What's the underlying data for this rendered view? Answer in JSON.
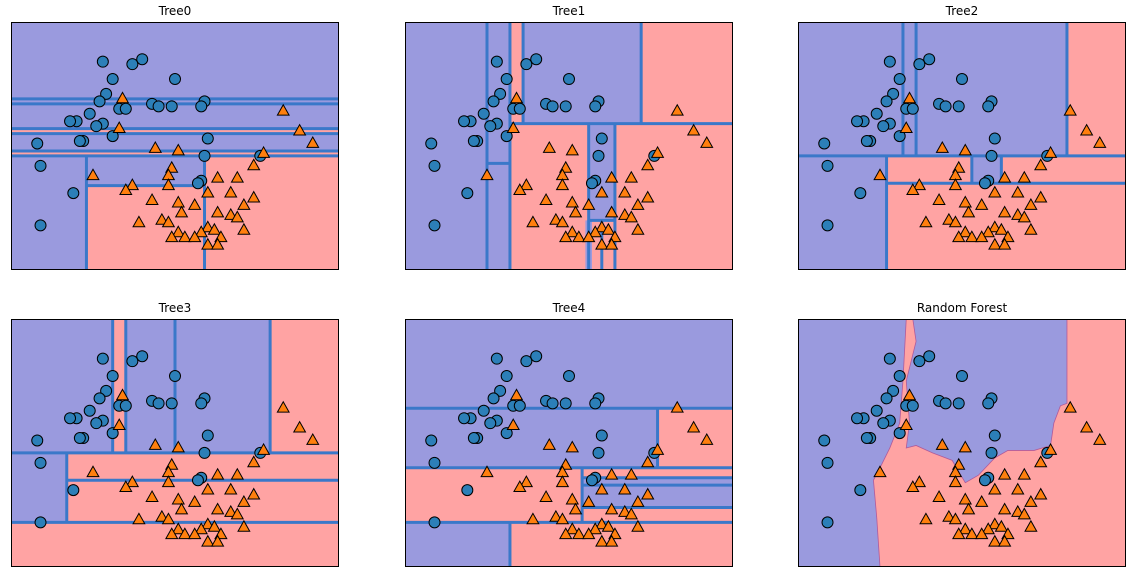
{
  "palette": {
    "class0_region": "#9a9ade",
    "class1_region": "#ffa3a3",
    "class0_marker": "#2c7fb8",
    "class1_marker": "#ff7f0e",
    "split_line": "#3a78c9",
    "frame": "#000000"
  },
  "chart_data": [
    {
      "type": "scatter",
      "title": "Tree0",
      "xlim": [
        0,
        100
      ],
      "ylim": [
        0,
        100
      ],
      "grid": false,
      "legend": "none",
      "markers": {
        "class0": "circle",
        "class1": "triangle"
      },
      "class0_regions": [
        [
          0,
          100,
          0,
          100
        ]
      ],
      "class1_regions": [
        [
          0,
          100,
          55,
          57
        ],
        [
          0,
          100,
          46,
          48
        ],
        [
          23,
          59,
          0,
          34
        ],
        [
          59,
          100,
          0,
          46
        ]
      ],
      "splits": [
        {
          "axis": "y",
          "v": 69,
          "a": 0,
          "b": 100
        },
        {
          "axis": "y",
          "v": 67,
          "a": 0,
          "b": 100
        },
        {
          "axis": "y",
          "v": 57,
          "a": 0,
          "b": 100
        },
        {
          "axis": "y",
          "v": 55,
          "a": 0,
          "b": 100
        },
        {
          "axis": "y",
          "v": 48,
          "a": 0,
          "b": 100
        },
        {
          "axis": "y",
          "v": 46,
          "a": 0,
          "b": 100
        },
        {
          "axis": "x",
          "v": 23,
          "a": 0,
          "b": 46
        },
        {
          "axis": "y",
          "v": 34,
          "a": 23,
          "b": 59
        },
        {
          "axis": "x",
          "v": 59,
          "a": 0,
          "b": 46
        }
      ],
      "class0_points": []
    },
    {
      "type": "scatter",
      "title": "Tree1",
      "xlim": [
        0,
        100
      ],
      "ylim": [
        0,
        100
      ],
      "grid": false,
      "legend": "none",
      "markers": {
        "class0": "circle",
        "class1": "triangle"
      },
      "class0_regions": [
        [
          0,
          100,
          0,
          100
        ]
      ],
      "class1_regions": [
        [
          32,
          100,
          0,
          59
        ],
        [
          32,
          36,
          59,
          100
        ],
        [
          72,
          100,
          59,
          100
        ]
      ],
      "class0_in_class1": [
        [
          25,
          32,
          43,
          59
        ],
        [
          56,
          64,
          20,
          59
        ],
        [
          55,
          57,
          0,
          20
        ]
      ],
      "splits": [
        {
          "axis": "x",
          "v": 25,
          "a": 0,
          "b": 100
        },
        {
          "axis": "x",
          "v": 32,
          "a": 0,
          "b": 100
        },
        {
          "axis": "y",
          "v": 43,
          "a": 25,
          "b": 32
        },
        {
          "axis": "y",
          "v": 59,
          "a": 32,
          "b": 100
        },
        {
          "axis": "x",
          "v": 36,
          "a": 59,
          "b": 100
        },
        {
          "axis": "x",
          "v": 72,
          "a": 59,
          "b": 100
        },
        {
          "axis": "x",
          "v": 56,
          "a": 0,
          "b": 59
        },
        {
          "axis": "x",
          "v": 64,
          "a": 0,
          "b": 59
        },
        {
          "axis": "y",
          "v": 20,
          "a": 56,
          "b": 64
        },
        {
          "axis": "x",
          "v": 60,
          "a": 0,
          "b": 20
        }
      ]
    },
    {
      "type": "scatter",
      "title": "Tree2",
      "xlim": [
        0,
        100
      ],
      "ylim": [
        0,
        100
      ],
      "grid": false,
      "legend": "none",
      "markers": {
        "class0": "circle",
        "class1": "triangle"
      },
      "class0_regions": [
        [
          0,
          100,
          0,
          100
        ]
      ],
      "class1_regions": [
        [
          27,
          100,
          0,
          46
        ],
        [
          82,
          100,
          46,
          100
        ]
      ],
      "class0_in_class1": [
        [
          53,
          62,
          35,
          46
        ]
      ],
      "splits": [
        {
          "axis": "y",
          "v": 46,
          "a": 0,
          "b": 100
        },
        {
          "axis": "x",
          "v": 27,
          "a": 0,
          "b": 46
        },
        {
          "axis": "y",
          "v": 35,
          "a": 27,
          "b": 100
        },
        {
          "axis": "x",
          "v": 32,
          "a": 46,
          "b": 100
        },
        {
          "axis": "x",
          "v": 36,
          "a": 46,
          "b": 100
        },
        {
          "axis": "x",
          "v": 82,
          "a": 46,
          "b": 100
        },
        {
          "axis": "x",
          "v": 53,
          "a": 35,
          "b": 46
        },
        {
          "axis": "x",
          "v": 62,
          "a": 35,
          "b": 46
        }
      ]
    },
    {
      "type": "scatter",
      "title": "Tree3",
      "xlim": [
        0,
        100
      ],
      "ylim": [
        0,
        100
      ],
      "grid": false,
      "legend": "none",
      "markers": {
        "class0": "circle",
        "class1": "triangle"
      },
      "class0_regions": [
        [
          0,
          100,
          0,
          100
        ]
      ],
      "class1_regions": [
        [
          0,
          100,
          0,
          18
        ],
        [
          17,
          100,
          18,
          46
        ],
        [
          31,
          35,
          46,
          100
        ],
        [
          79,
          100,
          46,
          100
        ],
        [
          50,
          100,
          46,
          100
        ]
      ],
      "class0_in_class1": [
        [
          0,
          17,
          18,
          46
        ],
        [
          50,
          79,
          46,
          100
        ]
      ],
      "splits": [
        {
          "axis": "y",
          "v": 46,
          "a": 0,
          "b": 100
        },
        {
          "axis": "y",
          "v": 18,
          "a": 0,
          "b": 100
        },
        {
          "axis": "x",
          "v": 17,
          "a": 18,
          "b": 46
        },
        {
          "axis": "y",
          "v": 35,
          "a": 17,
          "b": 100
        },
        {
          "axis": "x",
          "v": 31,
          "a": 46,
          "b": 100
        },
        {
          "axis": "x",
          "v": 35,
          "a": 46,
          "b": 100
        },
        {
          "axis": "x",
          "v": 50,
          "a": 46,
          "b": 100
        },
        {
          "axis": "x",
          "v": 79,
          "a": 46,
          "b": 100
        }
      ]
    },
    {
      "type": "scatter",
      "title": "Tree4",
      "xlim": [
        0,
        100
      ],
      "ylim": [
        0,
        100
      ],
      "grid": false,
      "legend": "none",
      "markers": {
        "class0": "circle",
        "class1": "triangle"
      },
      "class0_regions": [
        [
          0,
          100,
          0,
          100
        ]
      ],
      "class1_regions": [
        [
          0,
          100,
          18,
          40
        ],
        [
          77,
          100,
          40,
          64
        ],
        [
          32,
          100,
          0,
          18
        ]
      ],
      "class0_in_class1": [
        [
          54,
          100,
          24,
          36
        ]
      ],
      "splits": [
        {
          "axis": "y",
          "v": 64,
          "a": 0,
          "b": 100
        },
        {
          "axis": "y",
          "v": 40,
          "a": 0,
          "b": 100
        },
        {
          "axis": "y",
          "v": 18,
          "a": 0,
          "b": 100
        },
        {
          "axis": "x",
          "v": 32,
          "a": 0,
          "b": 18
        },
        {
          "axis": "x",
          "v": 77,
          "a": 40,
          "b": 64
        },
        {
          "axis": "y",
          "v": 36,
          "a": 54,
          "b": 100
        },
        {
          "axis": "y",
          "v": 33,
          "a": 54,
          "b": 100
        },
        {
          "axis": "y",
          "v": 24,
          "a": 54,
          "b": 100
        },
        {
          "axis": "x",
          "v": 54,
          "a": 18,
          "b": 40
        }
      ]
    },
    {
      "type": "scatter",
      "title": "Random Forest",
      "xlim": [
        0,
        100
      ],
      "ylim": [
        0,
        100
      ],
      "grid": false,
      "legend": "none",
      "markers": {
        "class0": "circle",
        "class1": "triangle"
      },
      "decision_boundary_class1": [
        [
          25,
          0
        ],
        [
          100,
          0
        ],
        [
          100,
          100
        ],
        [
          82,
          100
        ],
        [
          82,
          66
        ],
        [
          80,
          65
        ],
        [
          78,
          58
        ],
        [
          77,
          49
        ],
        [
          72,
          47
        ],
        [
          64,
          47
        ],
        [
          60,
          44
        ],
        [
          55,
          37
        ],
        [
          51,
          34
        ],
        [
          47,
          43
        ],
        [
          41,
          46
        ],
        [
          36,
          49
        ],
        [
          33,
          48
        ],
        [
          34,
          58
        ],
        [
          33,
          75
        ],
        [
          36,
          91
        ],
        [
          35,
          100
        ],
        [
          33,
          100
        ],
        [
          32,
          75
        ],
        [
          31,
          58
        ],
        [
          28,
          48
        ],
        [
          25,
          40
        ],
        [
          23,
          35
        ],
        [
          24,
          20
        ]
      ]
    }
  ],
  "points": {
    "class0": [
      [
        40,
        85
      ],
      [
        37,
        83
      ],
      [
        28,
        84
      ],
      [
        31,
        77
      ],
      [
        29,
        71
      ],
      [
        27,
        68
      ],
      [
        33,
        65
      ],
      [
        50,
        77
      ],
      [
        35,
        65
      ],
      [
        28,
        59
      ],
      [
        43,
        67
      ],
      [
        49,
        66
      ],
      [
        45,
        66
      ],
      [
        59,
        68
      ],
      [
        58,
        66
      ],
      [
        24,
        63
      ],
      [
        20,
        60
      ],
      [
        18,
        60
      ],
      [
        26,
        58
      ],
      [
        22,
        52
      ],
      [
        31,
        54
      ],
      [
        8,
        51
      ],
      [
        21,
        52
      ],
      [
        60,
        53
      ],
      [
        59,
        46
      ],
      [
        76,
        46
      ],
      [
        9,
        42
      ],
      [
        58,
        36
      ],
      [
        57,
        35
      ],
      [
        19,
        31
      ],
      [
        9,
        18
      ]
    ],
    "class1": [
      [
        34,
        69
      ],
      [
        83,
        64
      ],
      [
        88,
        56
      ],
      [
        33,
        57
      ],
      [
        92,
        51
      ],
      [
        44,
        49
      ],
      [
        51,
        48
      ],
      [
        77,
        47
      ],
      [
        49,
        41
      ],
      [
        74,
        42
      ],
      [
        25,
        38
      ],
      [
        48,
        38
      ],
      [
        63,
        37
      ],
      [
        69,
        37
      ],
      [
        37,
        34
      ],
      [
        35,
        32
      ],
      [
        48,
        34
      ],
      [
        60,
        31
      ],
      [
        67,
        31
      ],
      [
        74,
        29
      ],
      [
        43,
        28
      ],
      [
        51,
        27
      ],
      [
        56,
        26
      ],
      [
        71,
        26
      ],
      [
        52,
        23
      ],
      [
        63,
        23
      ],
      [
        67,
        22
      ],
      [
        69,
        21
      ],
      [
        39,
        19
      ],
      [
        46,
        20
      ],
      [
        48,
        19
      ],
      [
        60,
        17
      ],
      [
        62,
        16
      ],
      [
        71,
        16
      ],
      [
        51,
        15
      ],
      [
        58,
        15
      ],
      [
        49,
        13
      ],
      [
        53,
        13
      ],
      [
        64,
        13
      ],
      [
        56,
        13
      ],
      [
        60,
        10
      ],
      [
        63,
        10
      ]
    ]
  }
}
